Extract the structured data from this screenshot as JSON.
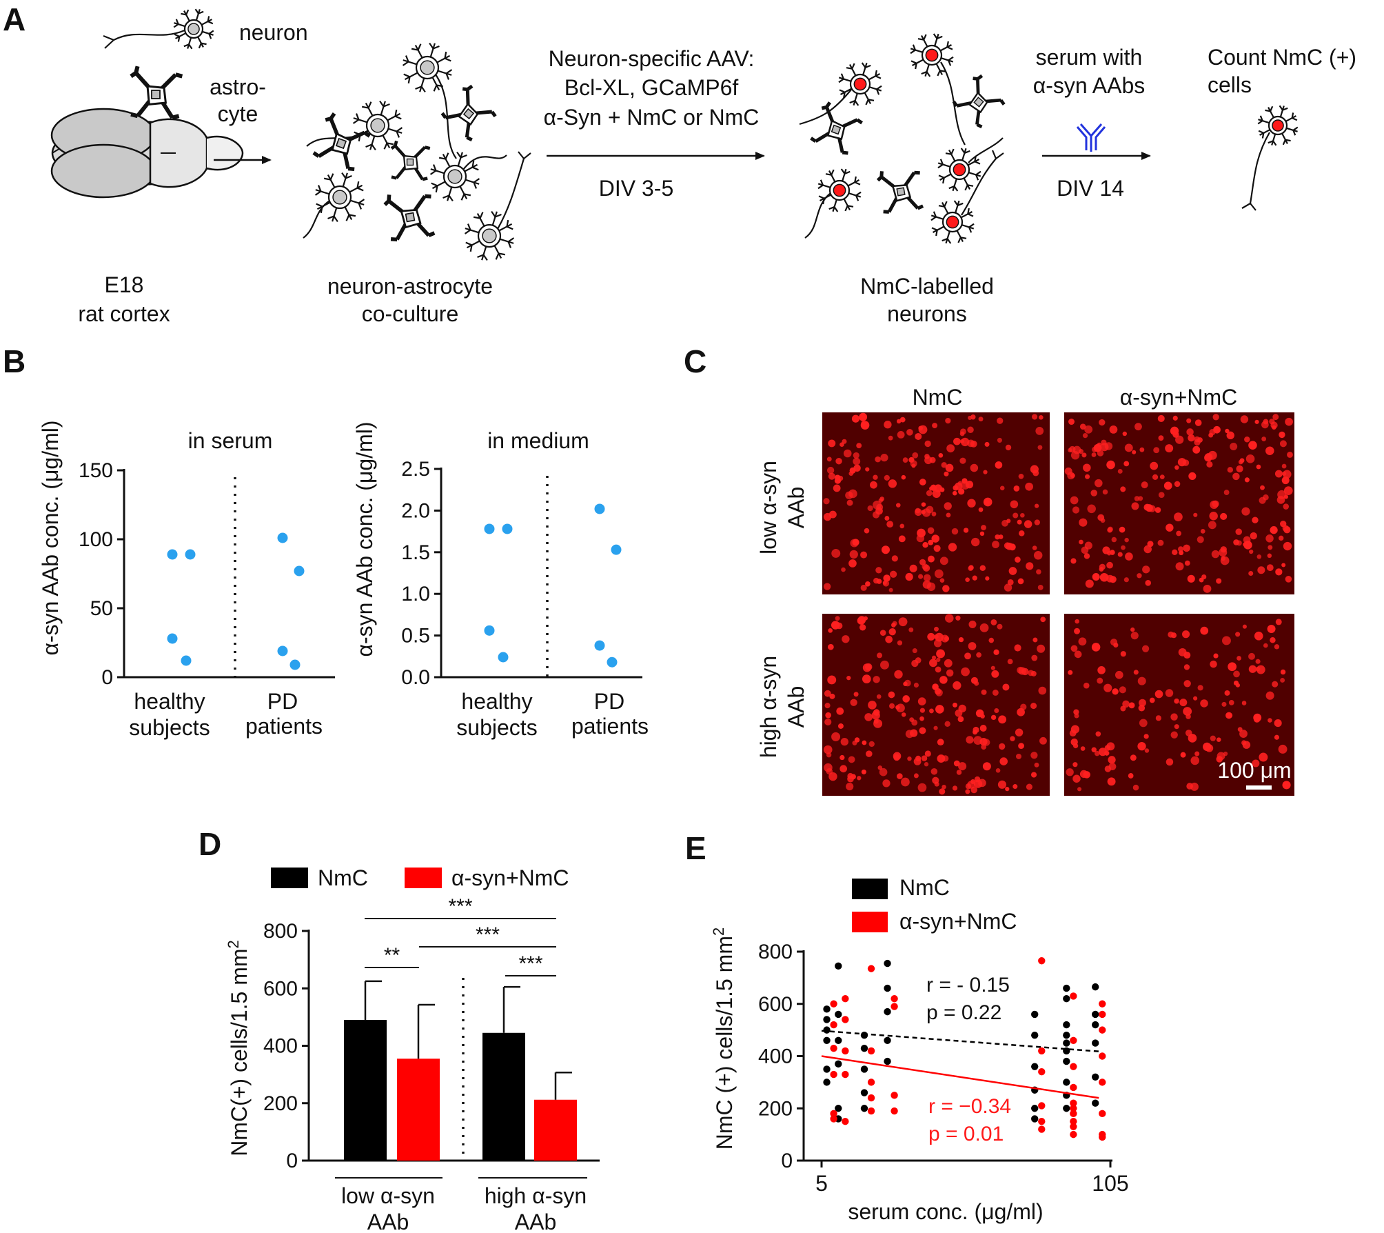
{
  "panelA": {
    "label": "A",
    "neuron_label": "neuron",
    "astrocyte_label": [
      "astro-",
      "cyte"
    ],
    "cortex_label": [
      "E18",
      "rat cortex"
    ],
    "coculture_label": [
      "neuron-astrocyte",
      "co-culture"
    ],
    "aav_text": [
      "Neuron-specific AAV:",
      "Bcl-XL, GCaMP6f",
      "α-Syn + NmC or NmC"
    ],
    "div1": "DIV 3-5",
    "nmc_label": [
      "NmC-labelled",
      "neurons"
    ],
    "serum_text": [
      "serum with",
      "α-syn AAbs"
    ],
    "div2": "DIV 14",
    "count_text": [
      "Count NmC (+)",
      "cells"
    ],
    "colors": {
      "red": "#ff1a1a",
      "soma_gray": "#c9c9c9",
      "antibody": "#2233dd"
    }
  },
  "panelB": {
    "label": "B",
    "ylabel": "α-syn AAb conc. (μg/ml)",
    "groups": [
      [
        "healthy",
        "subjects"
      ],
      [
        "PD",
        "patients"
      ]
    ],
    "dot_color": "#2aa1ee"
  },
  "panelC": {
    "label": "C",
    "col_titles": [
      "NmC",
      "α-syn+NmC"
    ],
    "row_titles": [
      [
        "low α-syn",
        "AAb"
      ],
      [
        "high α-syn",
        "AAb"
      ]
    ],
    "scalebar": "100 μm"
  },
  "panelD": {
    "label": "D",
    "groups": [
      [
        "low α-syn",
        "AAb"
      ],
      [
        "high α-syn",
        "AAb"
      ]
    ],
    "sig": [
      "***",
      "***",
      "**",
      "***"
    ]
  },
  "panelE": {
    "label": "E",
    "stats_black": [
      "r = - 0.15",
      "p = 0.22"
    ],
    "stats_red": [
      "r = −0.34",
      "p = 0.01"
    ]
  },
  "chart_data": [
    {
      "panel": "B-left",
      "type": "scatter",
      "title": "in serum",
      "ylabel": "α-syn AAb conc. (μg/ml)",
      "ylim": [
        0,
        150
      ],
      "yticks": [
        "0",
        "50",
        "100",
        "150"
      ],
      "categories": [
        "healthy subjects",
        "PD patients"
      ],
      "series": [
        {
          "name": "healthy subjects",
          "values": [
            89,
            89,
            28,
            12
          ]
        },
        {
          "name": "PD patients",
          "values": [
            101,
            77,
            19,
            9
          ]
        }
      ]
    },
    {
      "panel": "B-right",
      "type": "scatter",
      "title": "in medium",
      "ylabel": "α-syn AAb conc. (μg/ml)",
      "ylim": [
        0,
        2.5
      ],
      "yticks": [
        "0.0",
        "0.5",
        "1.0",
        "1.5",
        "2.0",
        "2.5"
      ],
      "categories": [
        "healthy subjects",
        "PD patients"
      ],
      "series": [
        {
          "name": "healthy subjects",
          "values": [
            1.78,
            1.78,
            0.56,
            0.24
          ]
        },
        {
          "name": "PD patients",
          "values": [
            2.02,
            1.53,
            0.38,
            0.18
          ]
        }
      ]
    },
    {
      "panel": "D",
      "type": "bar",
      "ylabel": "NmC(+) cells/1.5 mm2",
      "ylim": [
        0,
        800
      ],
      "yticks": [
        "0",
        "200",
        "400",
        "600",
        "800"
      ],
      "categories": [
        "low α-syn AAb",
        "high α-syn AAb"
      ],
      "series": [
        {
          "name": "NmC",
          "color": "#000000",
          "values": [
            490,
            445
          ],
          "errors": [
            135,
            160
          ]
        },
        {
          "name": "α-syn+NmC",
          "color": "#ff0000",
          "values": [
            355,
            212
          ],
          "errors": [
            188,
            95
          ]
        }
      ]
    },
    {
      "panel": "E",
      "type": "scatter",
      "xlabel": "serum conc. (μg/ml)",
      "ylabel": "NmC (+) cells/1.5 mm2",
      "xlim": [
        5,
        105
      ],
      "xticks": [
        "5",
        "105"
      ],
      "ylim": [
        0,
        800
      ],
      "yticks": [
        "0",
        "200",
        "400",
        "600",
        "800"
      ],
      "series": [
        {
          "name": "NmC",
          "color": "#000000",
          "points": [
            [
              8,
              580
            ],
            [
              8,
              540
            ],
            [
              8,
              500
            ],
            [
              8,
              460
            ],
            [
              8,
              350
            ],
            [
              8,
              300
            ],
            [
              12,
              745
            ],
            [
              12,
              560
            ],
            [
              12,
              460
            ],
            [
              12,
              370
            ],
            [
              12,
              200
            ],
            [
              12,
              160
            ],
            [
              21,
              480
            ],
            [
              21,
              430
            ],
            [
              21,
              350
            ],
            [
              21,
              260
            ],
            [
              21,
              200
            ],
            [
              29,
              755
            ],
            [
              29,
              660
            ],
            [
              29,
              570
            ],
            [
              29,
              460
            ],
            [
              29,
              380
            ],
            [
              80,
              560
            ],
            [
              80,
              480
            ],
            [
              80,
              360
            ],
            [
              80,
              270
            ],
            [
              80,
              200
            ],
            [
              80,
              160
            ],
            [
              91,
              660
            ],
            [
              91,
              620
            ],
            [
              91,
              520
            ],
            [
              91,
              480
            ],
            [
              91,
              450
            ],
            [
              91,
              420
            ],
            [
              91,
              380
            ],
            [
              91,
              300
            ],
            [
              91,
              250
            ],
            [
              91,
              200
            ],
            [
              101,
              665
            ],
            [
              101,
              560
            ],
            [
              101,
              520
            ],
            [
              101,
              450
            ],
            [
              101,
              320
            ],
            [
              101,
              220
            ]
          ],
          "fit": {
            "x": [
              5,
              101
            ],
            "y": [
              497,
              418
            ]
          }
        },
        {
          "name": "α-syn+NmC",
          "color": "#ff0000",
          "points": [
            [
              8,
              600
            ],
            [
              8,
              520
            ],
            [
              8,
              430
            ],
            [
              8,
              330
            ],
            [
              8,
              180
            ],
            [
              8,
              160
            ],
            [
              12,
              620
            ],
            [
              12,
              540
            ],
            [
              12,
              420
            ],
            [
              12,
              330
            ],
            [
              12,
              150
            ],
            [
              21,
              735
            ],
            [
              21,
              420
            ],
            [
              21,
              300
            ],
            [
              21,
              240
            ],
            [
              21,
              190
            ],
            [
              29,
              620
            ],
            [
              29,
              590
            ],
            [
              29,
              250
            ],
            [
              29,
              190
            ],
            [
              80,
              765
            ],
            [
              80,
              420
            ],
            [
              80,
              340
            ],
            [
              80,
              210
            ],
            [
              80,
              150
            ],
            [
              80,
              120
            ],
            [
              91,
              630
            ],
            [
              91,
              460
            ],
            [
              91,
              360
            ],
            [
              91,
              280
            ],
            [
              91,
              220
            ],
            [
              91,
              200
            ],
            [
              91,
              180
            ],
            [
              91,
              150
            ],
            [
              91,
              130
            ],
            [
              91,
              100
            ],
            [
              101,
              600
            ],
            [
              101,
              560
            ],
            [
              101,
              500
            ],
            [
              101,
              400
            ],
            [
              101,
              300
            ],
            [
              101,
              180
            ],
            [
              101,
              100
            ],
            [
              101,
              90
            ]
          ],
          "fit": {
            "x": [
              5,
              101
            ],
            "y": [
              400,
              240
            ]
          }
        }
      ]
    }
  ]
}
